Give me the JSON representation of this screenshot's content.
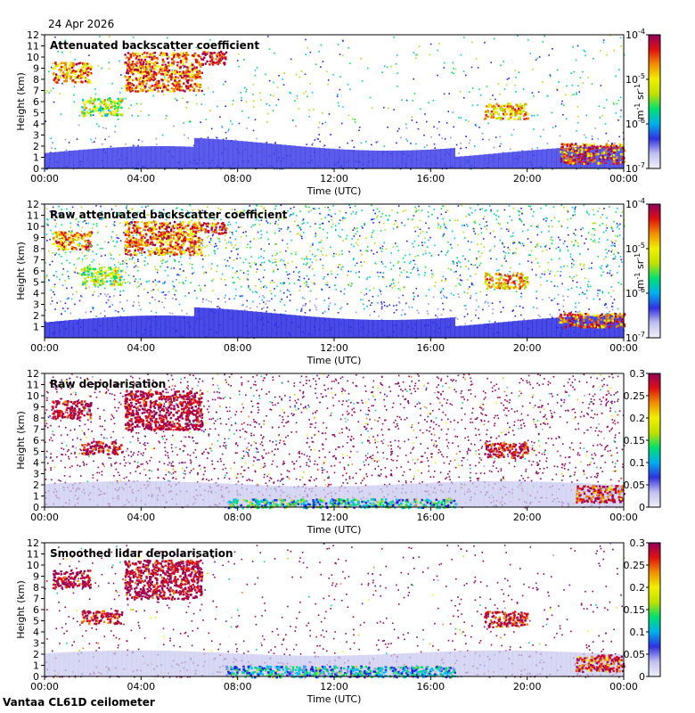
{
  "date": "24 Apr 2026",
  "footer": "Vantaa CL61D ceilometer",
  "chart_data": [
    {
      "type": "heatmap",
      "title": "Attenuated backscatter coefficient",
      "xlabel": "Time (UTC)",
      "ylabel": "Height (km)",
      "xlim": [
        0,
        24
      ],
      "ylim": [
        0,
        12
      ],
      "xticks": [
        "00:00",
        "04:00",
        "08:00",
        "12:00",
        "16:00",
        "20:00",
        "00:00"
      ],
      "yticks": [
        "0",
        "1",
        "2",
        "3",
        "4",
        "5",
        "6",
        "7",
        "8",
        "9",
        "10",
        "11",
        "12"
      ],
      "colorbar": {
        "scale": "log",
        "range": [
          1e-07,
          0.0001
        ],
        "ticks": [
          "10-7",
          "10-6",
          "10-5",
          "10-4"
        ],
        "unit": "m-1 sr-1"
      },
      "features": [
        {
          "t0": 0.3,
          "t1": 1.9,
          "h0": 7.8,
          "h1": 9.6,
          "level": 0.75
        },
        {
          "t0": 3.3,
          "t1": 6.5,
          "h0": 7.0,
          "h1": 10.5,
          "level": 0.78
        },
        {
          "t0": 6.5,
          "t1": 7.5,
          "h0": 9.4,
          "h1": 10.6,
          "level": 0.9
        },
        {
          "t0": 1.5,
          "t1": 3.2,
          "h0": 4.8,
          "h1": 6.4,
          "level": 0.55
        },
        {
          "t0": 18.2,
          "t1": 20.0,
          "h0": 4.5,
          "h1": 5.9,
          "level": 0.7
        },
        {
          "t0": 21.3,
          "t1": 24.0,
          "h0": 0.5,
          "h1": 2.3,
          "level": 0.8
        }
      ]
    },
    {
      "type": "heatmap",
      "title": "Raw attenuated backscatter coefficient",
      "xlabel": "Time (UTC)",
      "ylabel": "Height (km)",
      "xlim": [
        0,
        24
      ],
      "ylim": [
        0,
        12
      ],
      "xticks": [
        "00:00",
        "04:00",
        "08:00",
        "12:00",
        "16:00",
        "20:00",
        "00:00"
      ],
      "yticks": [
        "1",
        "2",
        "3",
        "4",
        "5",
        "6",
        "7",
        "8",
        "9",
        "10",
        "11",
        "12"
      ],
      "colorbar": {
        "scale": "log",
        "range": [
          1e-07,
          0.0001
        ],
        "ticks": [
          "10-7",
          "10-6",
          "10-5",
          "10-4"
        ],
        "unit": "m-1 sr-1"
      },
      "features": [
        {
          "t0": 0.3,
          "t1": 1.9,
          "h0": 8.0,
          "h1": 9.6,
          "level": 0.75
        },
        {
          "t0": 3.3,
          "t1": 6.5,
          "h0": 7.5,
          "h1": 10.5,
          "level": 0.78
        },
        {
          "t0": 6.5,
          "t1": 7.5,
          "h0": 9.4,
          "h1": 10.4,
          "level": 0.85
        },
        {
          "t0": 1.5,
          "t1": 3.2,
          "h0": 4.8,
          "h1": 6.4,
          "level": 0.55
        },
        {
          "t0": 18.2,
          "t1": 20.0,
          "h0": 4.5,
          "h1": 5.9,
          "level": 0.7
        },
        {
          "t0": 21.3,
          "t1": 24.0,
          "h0": 1.0,
          "h1": 2.3,
          "level": 0.8
        }
      ]
    },
    {
      "type": "heatmap",
      "title": "Raw depolarisation",
      "xlabel": "Time (UTC)",
      "ylabel": "Height (km)",
      "xlim": [
        0,
        24
      ],
      "ylim": [
        0,
        12
      ],
      "xticks": [
        "00:00",
        "04:00",
        "08:00",
        "12:00",
        "16:00",
        "20:00",
        "00:00"
      ],
      "yticks": [
        "0",
        "1",
        "2",
        "3",
        "4",
        "5",
        "6",
        "7",
        "8",
        "9",
        "10",
        "11",
        "12"
      ],
      "colorbar": {
        "scale": "linear",
        "range": [
          0,
          0.3
        ],
        "ticks": [
          "0",
          "0.05",
          "0.1",
          "0.15",
          "0.2",
          "0.25",
          "0.3"
        ],
        "unit": ""
      },
      "features": [
        {
          "t0": 0.3,
          "t1": 1.9,
          "h0": 8.0,
          "h1": 9.6,
          "level": 0.95
        },
        {
          "t0": 3.3,
          "t1": 6.5,
          "h0": 7.0,
          "h1": 10.5,
          "level": 0.95
        },
        {
          "t0": 1.5,
          "t1": 3.2,
          "h0": 4.8,
          "h1": 6.0,
          "level": 0.9
        },
        {
          "t0": 18.2,
          "t1": 20.0,
          "h0": 4.5,
          "h1": 5.9,
          "level": 0.9
        },
        {
          "t0": 7.5,
          "t1": 17.0,
          "h0": 0.0,
          "h1": 0.8,
          "level": 0.4
        },
        {
          "t0": 22.0,
          "t1": 24.0,
          "h0": 0.5,
          "h1": 2.0,
          "level": 0.85
        }
      ]
    },
    {
      "type": "heatmap",
      "title": "Smoothed lidar depolarisation",
      "xlabel": "Time (UTC)",
      "ylabel": "Height (km)",
      "xlim": [
        0,
        24
      ],
      "ylim": [
        0,
        12
      ],
      "xticks": [
        "00:00",
        "04:00",
        "08:00",
        "12:00",
        "16:00",
        "20:00",
        "00:00"
      ],
      "yticks": [
        "0",
        "1",
        "2",
        "3",
        "4",
        "5",
        "6",
        "7",
        "8",
        "9",
        "10",
        "11",
        "12"
      ],
      "colorbar": {
        "scale": "linear",
        "range": [
          0,
          0.3
        ],
        "ticks": [
          "0",
          "0.05",
          "0.1",
          "0.15",
          "0.2",
          "0.25",
          "0.3"
        ],
        "unit": ""
      },
      "features": [
        {
          "t0": 0.3,
          "t1": 1.9,
          "h0": 8.0,
          "h1": 9.6,
          "level": 0.95
        },
        {
          "t0": 3.3,
          "t1": 6.5,
          "h0": 7.0,
          "h1": 10.5,
          "level": 0.95
        },
        {
          "t0": 1.5,
          "t1": 3.2,
          "h0": 4.8,
          "h1": 6.0,
          "level": 0.9
        },
        {
          "t0": 18.2,
          "t1": 20.0,
          "h0": 4.5,
          "h1": 5.9,
          "level": 0.9
        },
        {
          "t0": 7.5,
          "t1": 17.0,
          "h0": 0.0,
          "h1": 1.0,
          "level": 0.35
        },
        {
          "t0": 22.0,
          "t1": 24.0,
          "h0": 0.5,
          "h1": 2.0,
          "level": 0.85
        }
      ]
    }
  ]
}
